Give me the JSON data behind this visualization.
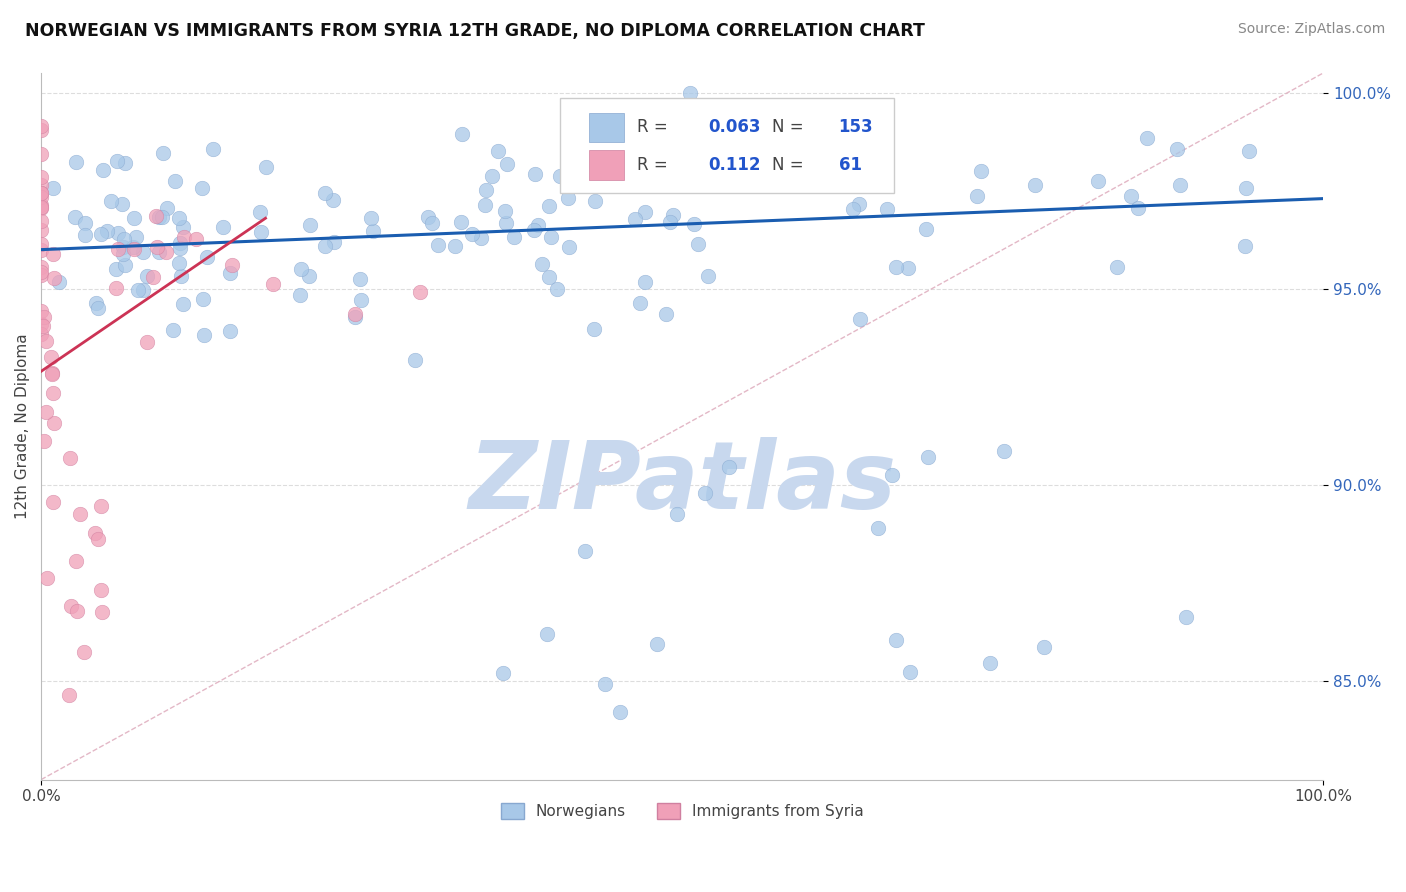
{
  "title": "NORWEGIAN VS IMMIGRANTS FROM SYRIA 12TH GRADE, NO DIPLOMA CORRELATION CHART",
  "source": "Source: ZipAtlas.com",
  "ylabel": "12th Grade, No Diploma",
  "xlim": [
    0.0,
    1.0
  ],
  "ylim": [
    0.825,
    1.005
  ],
  "yticks": [
    0.85,
    0.9,
    0.95,
    1.0
  ],
  "ytick_labels": [
    "85.0%",
    "90.0%",
    "95.0%",
    "100.0%"
  ],
  "legend_r_norwegian": "0.063",
  "legend_n_norwegian": "153",
  "legend_r_syrian": "0.112",
  "legend_n_syrian": "61",
  "norwegian_color": "#a8c8e8",
  "norwegian_edge": "#88a8d0",
  "syrian_color": "#f0a0b8",
  "syrian_edge": "#d080a0",
  "norwegian_line_color": "#1a5db0",
  "syrian_line_color": "#cc3355",
  "ref_line_color": "#e0b0c0",
  "watermark": "ZIPatlas",
  "watermark_color": "#c8d8ee",
  "grid_color": "#dddddd",
  "title_color": "#111111",
  "source_color": "#888888",
  "label_color": "#444444",
  "tick_color": "#3366bb",
  "legend_text_color": "#444444",
  "legend_value_color": "#2255cc"
}
